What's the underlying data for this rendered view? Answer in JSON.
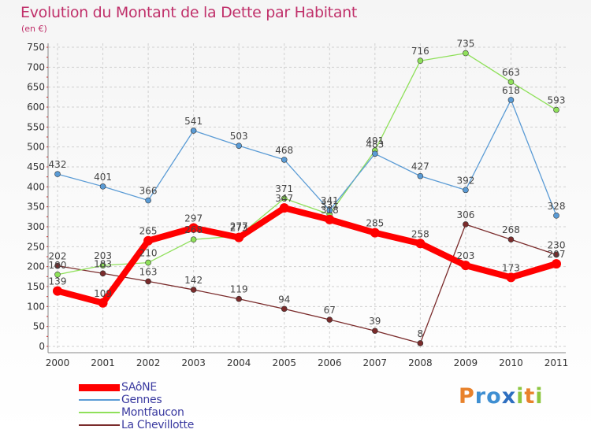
{
  "title": "Evolution du Montant de la Dette par Habitant",
  "subtitle": "(en €)",
  "brand": {
    "letters": [
      "P",
      "r",
      "o",
      "x",
      "i",
      "t",
      "i"
    ],
    "colors": [
      "#e8822c",
      "#3f8fd2",
      "#3f8fd2",
      "#2e6fc0",
      "#8cc63f",
      "#e8822c",
      "#8cc63f"
    ]
  },
  "chart_data": {
    "type": "line",
    "x": [
      "2000",
      "2001",
      "2002",
      "2003",
      "2004",
      "2005",
      "2006",
      "2007",
      "2008",
      "2009",
      "2010",
      "2011"
    ],
    "ylim": [
      0,
      750
    ],
    "yticks": [
      0,
      50,
      100,
      150,
      200,
      250,
      300,
      350,
      400,
      450,
      500,
      550,
      600,
      650,
      700,
      750
    ],
    "grid": true,
    "legend": "bottom-left",
    "series": [
      {
        "name": "La Chevillotte",
        "color": "#7a2b2b",
        "values": [
          202,
          183,
          163,
          142,
          119,
          94,
          67,
          39,
          8,
          306,
          268,
          230
        ]
      },
      {
        "name": "Montfaucon",
        "color": "#8fe05a",
        "values": [
          180,
          203,
          210,
          268,
          277,
          371,
          331,
          491,
          716,
          735,
          663,
          593
        ]
      },
      {
        "name": "Gennes",
        "color": "#5a9bd5",
        "values": [
          432,
          401,
          366,
          541,
          503,
          468,
          341,
          483,
          427,
          392,
          618,
          328
        ]
      },
      {
        "name": "SAôNE",
        "color": "#ff0000",
        "values": [
          139,
          109,
          265,
          297,
          273,
          347,
          318,
          285,
          258,
          203,
          173,
          207
        ]
      }
    ]
  },
  "legend_items": [
    "SAôNE",
    "Gennes",
    "Montfaucon",
    "La Chevillotte"
  ]
}
